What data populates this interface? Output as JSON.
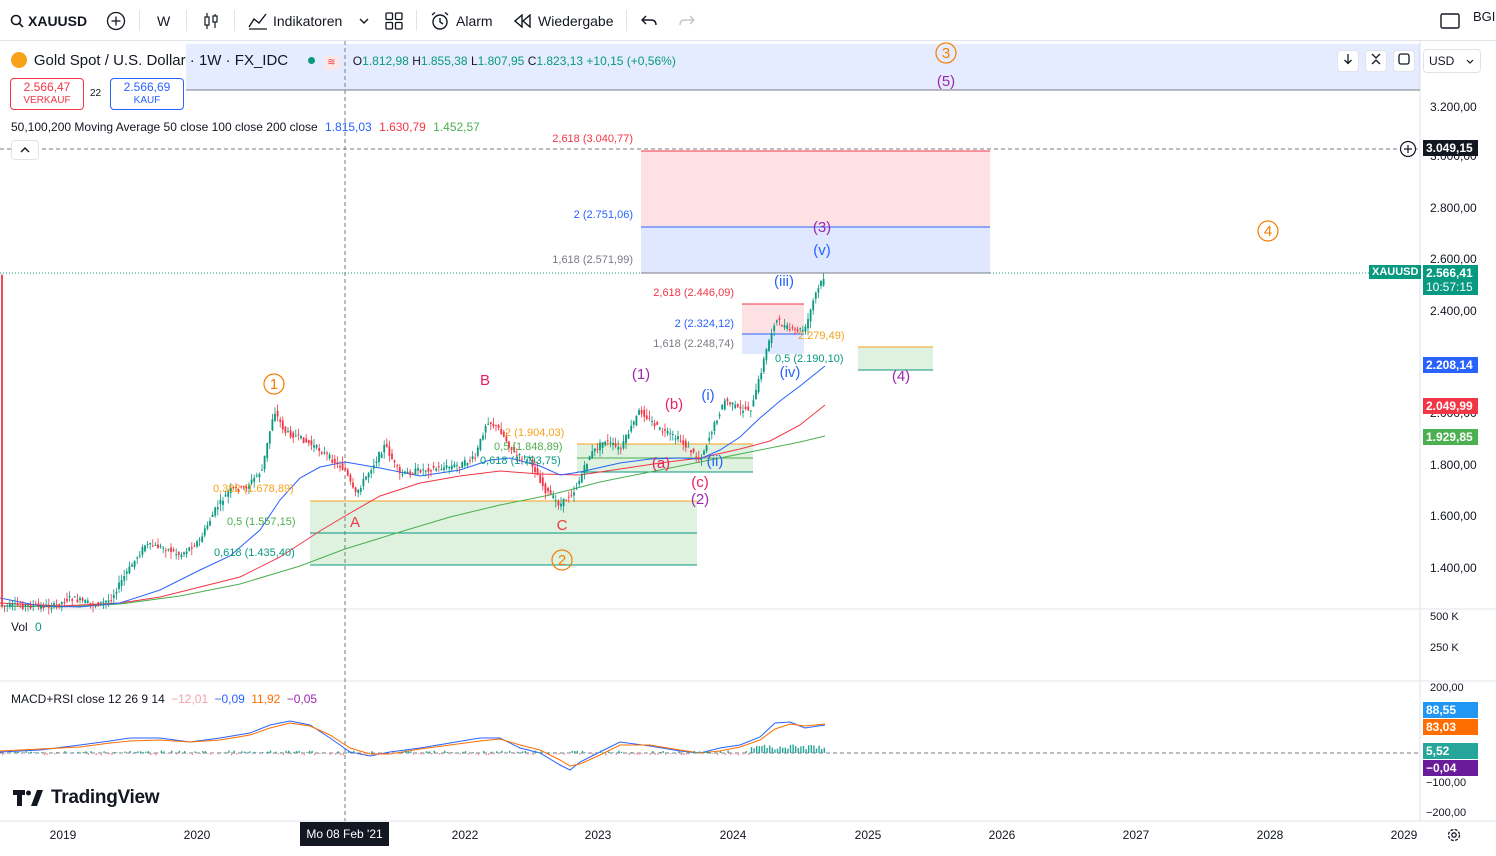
{
  "toolbar": {
    "symbol": "XAUUSD",
    "interval": "W",
    "indicators_label": "Indikatoren",
    "alert_label": "Alarm",
    "replay_label": "Wiedergabe",
    "user_label": "BGI"
  },
  "header": {
    "title": "Gold Spot / U.S. Dollar · 1W · FX_IDC",
    "ohlc": {
      "o_label": "O",
      "o": "1.812,98",
      "h_label": "H",
      "h": "1.855,38",
      "l_label": "L",
      "l": "1.807,95",
      "c_label": "C",
      "c": "1.823,13",
      "change": "+10,15 (+0,56%)"
    },
    "sell_price": "2.566,47",
    "sell_label": "VERKAUF",
    "spread": "22",
    "buy_price": "2.566,69",
    "buy_label": "KAUF",
    "currency": "USD"
  },
  "indicators": {
    "ma_label": "50,100,200 Moving Average 50 close 100 close 200 close",
    "ma50": "1.815,03",
    "ma100": "1.630,79",
    "ma200": "1.452,57",
    "vol_label": "Vol",
    "vol_value": "0",
    "macd_label": "MACD+RSI close 12 26 9 14",
    "macd_values": [
      "−12,01",
      "−0,09",
      "11,92",
      "−0,05"
    ]
  },
  "price_axis": {
    "ticks": [
      "3.200,00",
      "3.000,00",
      "2.800,00",
      "2.600,00",
      "2.400,00",
      "2.200,00",
      "2.000,00",
      "1.800,00",
      "1.600,00",
      "1.400,00"
    ],
    "tags": {
      "target": "3.049,15",
      "symbol": "XAUUSD",
      "last": "2.566,41",
      "countdown": "10:57:15",
      "ma50": "2.208,14",
      "ma100": "2.049,99",
      "ma200": "1.929,85"
    },
    "vol_ticks": [
      "500 K",
      "250 K"
    ],
    "macd_ticks": [
      "200,00",
      "−100,00",
      "−200,00"
    ],
    "macd_tags": [
      "88,55",
      "83,03",
      "5,52",
      "−0,04"
    ]
  },
  "time_axis": {
    "labels": [
      "2019",
      "2020",
      "2022",
      "2023",
      "2024",
      "2025",
      "2026",
      "2027",
      "2028",
      "2029"
    ],
    "cursor_label": "Mo 08 Feb '21"
  },
  "annotations": {
    "fib_labels": [
      "2,618 (3.040,77)",
      "2 (2.751,06)",
      "1,618 (2.571,99)",
      "2,618 (2.446,09)",
      "2 (2.324,12)",
      "1,618 (2.248,74)",
      "2.279,49)",
      "0,5 (2.190,10)",
      "2 (1.904,03)",
      "0,5 (1.848,89)",
      "0,618 (1.793,75)",
      "0,382 (1.678,89)",
      "0,5 (1.557,15)",
      "0,618 (1.435,40)"
    ],
    "waves": [
      "1",
      "2",
      "3",
      "4",
      "A",
      "B",
      "C",
      "(1)",
      "(2)",
      "(3)",
      "(4)",
      "(5)",
      "(a)",
      "(b)",
      "(c)",
      "(i)",
      "(ii)",
      "(iii)",
      "(iv)",
      "(v)"
    ]
  },
  "brand": "TradingView",
  "colors": {
    "ma50": "#2962ff",
    "ma100": "#f23645",
    "ma200": "#4caf50",
    "bull": "#089981",
    "bear": "#f23645",
    "fib_orange": "#f7a21b",
    "wave_orange": "#f57c00",
    "wave_purple": "#9c27b0",
    "wave_blue": "#2962ff",
    "wave_red": "#e91e63"
  },
  "chart_data": {
    "type": "candlestick",
    "symbol": "XAUUSD",
    "interval": "1W",
    "x": [
      "2019",
      "2020",
      "2021",
      "2022",
      "2023",
      "2024",
      "2025"
    ],
    "series": [
      {
        "name": "Price",
        "values": [
          1290,
          1550,
          1780,
          1810,
          1830,
          2060,
          2566
        ]
      },
      {
        "name": "MA50",
        "values": [
          1300,
          1450,
          1790,
          1810,
          1800,
          1900,
          2208
        ]
      },
      {
        "name": "MA100",
        "values": [
          1290,
          1380,
          1650,
          1770,
          1790,
          1850,
          2050
        ]
      },
      {
        "name": "MA200",
        "values": [
          1280,
          1330,
          1500,
          1640,
          1720,
          1800,
          1930
        ]
      }
    ],
    "ylim": [
      1300,
      3300
    ]
  }
}
